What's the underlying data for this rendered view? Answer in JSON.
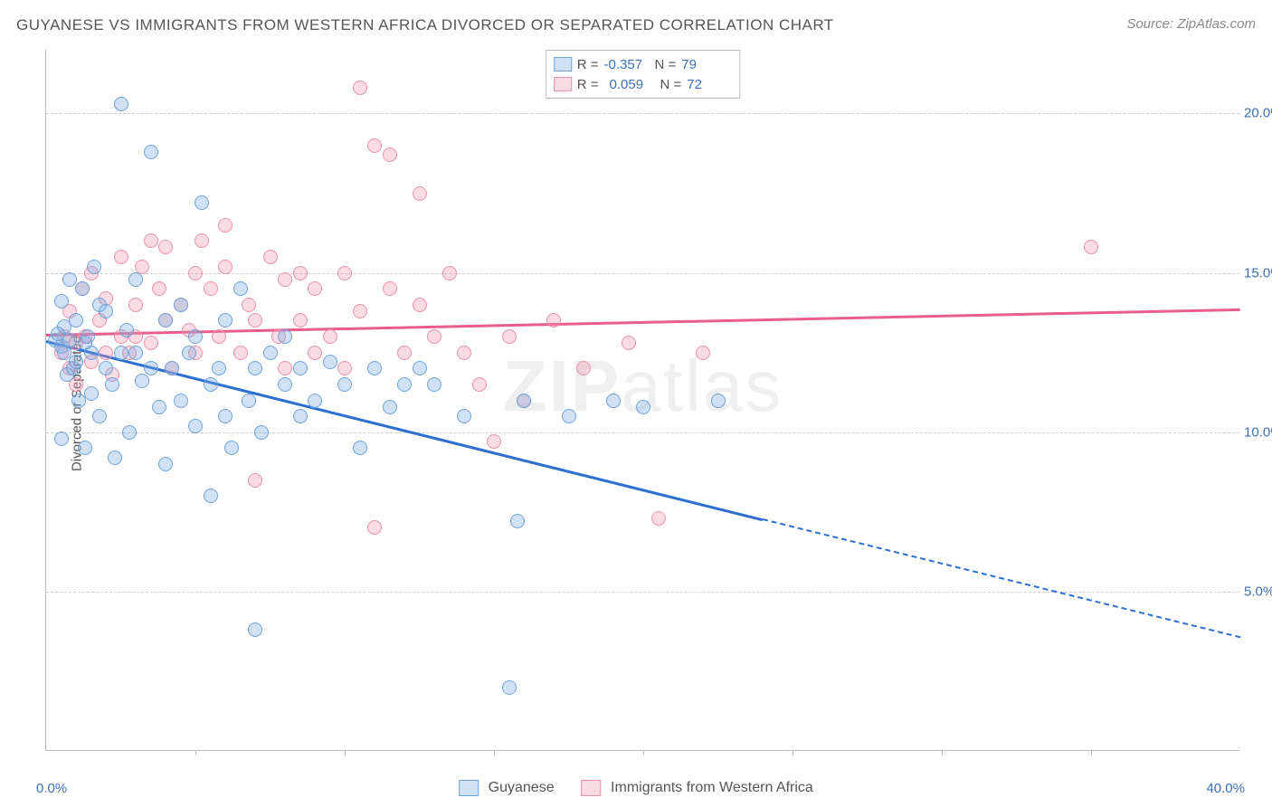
{
  "title": "GUYANESE VS IMMIGRANTS FROM WESTERN AFRICA DIVORCED OR SEPARATED CORRELATION CHART",
  "source": "Source: ZipAtlas.com",
  "watermark": "ZIPatlas",
  "ylabel": "Divorced or Separated",
  "chart": {
    "type": "scatter",
    "xlim": [
      0,
      40
    ],
    "ylim": [
      0,
      22
    ],
    "xaxis_min_label": "0.0%",
    "xaxis_max_label": "40.0%",
    "yticks": [
      {
        "v": 5,
        "label": "5.0%"
      },
      {
        "v": 10,
        "label": "10.0%"
      },
      {
        "v": 15,
        "label": "15.0%"
      },
      {
        "v": 20,
        "label": "20.0%"
      }
    ],
    "xticks_minor": [
      5,
      10,
      15,
      20,
      25,
      30,
      35
    ],
    "grid_color": "#d0d0d0",
    "axis_label_color": "#3b6fb6",
    "background": "#ffffff",
    "series": {
      "guyanese": {
        "label": "Guyanese",
        "fill": "rgba(120,170,225,0.35)",
        "stroke": "#6fa3d8",
        "line_color": "#2d6fd1",
        "r_label": "R =",
        "r_value": "-0.357",
        "n_label": "N =",
        "n_value": "79",
        "trend": {
          "x1": 0,
          "y1": 12.9,
          "x2": 24,
          "y2": 7.3,
          "x2_dash": 40,
          "y2_dash": 3.6
        },
        "points": [
          [
            0.3,
            12.9
          ],
          [
            0.4,
            13.1
          ],
          [
            0.5,
            12.7
          ],
          [
            0.5,
            14.1
          ],
          [
            0.6,
            12.5
          ],
          [
            0.6,
            13.3
          ],
          [
            0.7,
            11.8
          ],
          [
            0.8,
            12.9
          ],
          [
            0.8,
            14.8
          ],
          [
            0.9,
            12.0
          ],
          [
            1.0,
            13.5
          ],
          [
            1.0,
            12.2
          ],
          [
            1.1,
            11.0
          ],
          [
            1.2,
            14.5
          ],
          [
            1.3,
            12.8
          ],
          [
            1.3,
            9.5
          ],
          [
            1.4,
            13.0
          ],
          [
            1.5,
            12.5
          ],
          [
            1.5,
            11.2
          ],
          [
            1.6,
            15.2
          ],
          [
            1.8,
            14.0
          ],
          [
            1.8,
            10.5
          ],
          [
            2.0,
            13.8
          ],
          [
            2.0,
            12.0
          ],
          [
            2.2,
            11.5
          ],
          [
            2.3,
            9.2
          ],
          [
            2.5,
            12.5
          ],
          [
            2.5,
            20.3
          ],
          [
            2.7,
            13.2
          ],
          [
            2.8,
            10.0
          ],
          [
            3.0,
            12.5
          ],
          [
            3.0,
            14.8
          ],
          [
            3.2,
            11.6
          ],
          [
            3.5,
            12.0
          ],
          [
            3.5,
            18.8
          ],
          [
            3.8,
            10.8
          ],
          [
            4.0,
            13.5
          ],
          [
            4.0,
            9.0
          ],
          [
            4.2,
            12.0
          ],
          [
            4.5,
            11.0
          ],
          [
            4.5,
            14.0
          ],
          [
            4.8,
            12.5
          ],
          [
            5.0,
            10.2
          ],
          [
            5.0,
            13.0
          ],
          [
            5.2,
            17.2
          ],
          [
            5.5,
            11.5
          ],
          [
            5.5,
            8.0
          ],
          [
            5.8,
            12.0
          ],
          [
            6.0,
            10.5
          ],
          [
            6.0,
            13.5
          ],
          [
            6.2,
            9.5
          ],
          [
            6.5,
            14.5
          ],
          [
            6.8,
            11.0
          ],
          [
            7.0,
            12.0
          ],
          [
            7.0,
            3.8
          ],
          [
            7.2,
            10.0
          ],
          [
            7.5,
            12.5
          ],
          [
            8.0,
            11.5
          ],
          [
            8.0,
            13.0
          ],
          [
            8.5,
            10.5
          ],
          [
            8.5,
            12.0
          ],
          [
            9.0,
            11.0
          ],
          [
            9.5,
            12.2
          ],
          [
            10.0,
            11.5
          ],
          [
            10.5,
            9.5
          ],
          [
            11.0,
            12.0
          ],
          [
            11.5,
            10.8
          ],
          [
            12.0,
            11.5
          ],
          [
            12.5,
            12.0
          ],
          [
            13.0,
            11.5
          ],
          [
            14.0,
            10.5
          ],
          [
            15.5,
            2.0
          ],
          [
            15.8,
            7.2
          ],
          [
            16.0,
            11.0
          ],
          [
            17.5,
            10.5
          ],
          [
            19.0,
            11.0
          ],
          [
            20.0,
            10.8
          ],
          [
            22.5,
            11.0
          ],
          [
            0.5,
            9.8
          ]
        ]
      },
      "western_africa": {
        "label": "Immigrants from Western Africa",
        "fill": "rgba(240,150,175,0.35)",
        "stroke": "#e891ab",
        "line_color": "#e85d8a",
        "r_label": "R =",
        "r_value": "0.059",
        "n_label": "N =",
        "n_value": "72",
        "trend": {
          "x1": 0,
          "y1": 13.1,
          "x2": 40,
          "y2": 13.9
        },
        "points": [
          [
            0.5,
            12.5
          ],
          [
            0.6,
            13.0
          ],
          [
            0.8,
            12.0
          ],
          [
            0.8,
            13.8
          ],
          [
            1.0,
            12.8
          ],
          [
            1.0,
            11.5
          ],
          [
            1.2,
            14.5
          ],
          [
            1.3,
            13.0
          ],
          [
            1.5,
            12.2
          ],
          [
            1.5,
            15.0
          ],
          [
            1.8,
            13.5
          ],
          [
            2.0,
            12.5
          ],
          [
            2.0,
            14.2
          ],
          [
            2.2,
            11.8
          ],
          [
            2.5,
            13.0
          ],
          [
            2.5,
            15.5
          ],
          [
            2.8,
            12.5
          ],
          [
            3.0,
            14.0
          ],
          [
            3.0,
            13.0
          ],
          [
            3.2,
            15.2
          ],
          [
            3.5,
            12.8
          ],
          [
            3.8,
            14.5
          ],
          [
            4.0,
            13.5
          ],
          [
            4.0,
            15.8
          ],
          [
            4.2,
            12.0
          ],
          [
            4.5,
            14.0
          ],
          [
            4.8,
            13.2
          ],
          [
            5.0,
            15.0
          ],
          [
            5.0,
            12.5
          ],
          [
            5.5,
            14.5
          ],
          [
            5.8,
            13.0
          ],
          [
            6.0,
            15.2
          ],
          [
            6.0,
            16.5
          ],
          [
            6.5,
            12.5
          ],
          [
            6.8,
            14.0
          ],
          [
            7.0,
            13.5
          ],
          [
            7.0,
            8.5
          ],
          [
            7.5,
            15.5
          ],
          [
            7.8,
            13.0
          ],
          [
            8.0,
            14.8
          ],
          [
            8.0,
            12.0
          ],
          [
            8.5,
            13.5
          ],
          [
            8.5,
            15.0
          ],
          [
            9.0,
            12.5
          ],
          [
            9.0,
            14.5
          ],
          [
            9.5,
            13.0
          ],
          [
            10.0,
            15.0
          ],
          [
            10.0,
            12.0
          ],
          [
            10.5,
            13.8
          ],
          [
            10.5,
            20.8
          ],
          [
            11.0,
            19.0
          ],
          [
            11.0,
            7.0
          ],
          [
            11.5,
            14.5
          ],
          [
            11.5,
            18.7
          ],
          [
            12.0,
            12.5
          ],
          [
            12.5,
            14.0
          ],
          [
            12.5,
            17.5
          ],
          [
            13.0,
            13.0
          ],
          [
            13.5,
            15.0
          ],
          [
            14.0,
            12.5
          ],
          [
            14.5,
            11.5
          ],
          [
            15.0,
            9.7
          ],
          [
            15.5,
            13.0
          ],
          [
            16.0,
            11.0
          ],
          [
            17.0,
            13.5
          ],
          [
            18.0,
            12.0
          ],
          [
            19.5,
            12.8
          ],
          [
            20.5,
            7.3
          ],
          [
            22.0,
            12.5
          ],
          [
            35.0,
            15.8
          ],
          [
            5.2,
            16.0
          ],
          [
            3.5,
            16.0
          ]
        ]
      }
    }
  }
}
